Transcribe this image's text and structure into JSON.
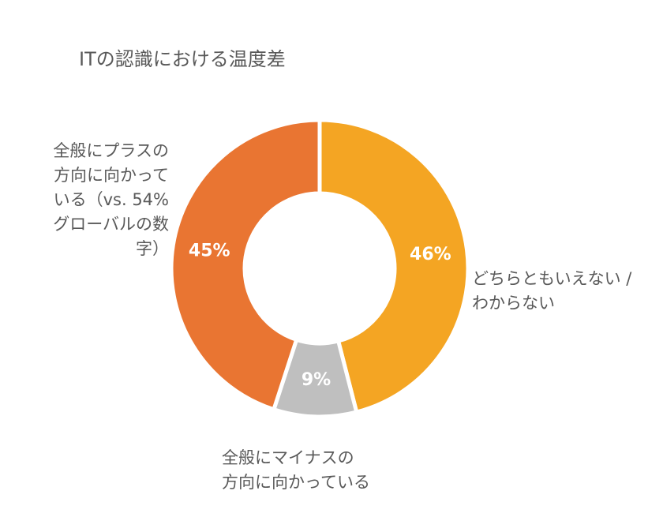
{
  "chart_data": {
    "type": "pie",
    "title": "ITの認識における温度差",
    "categories": [
      [
        "どちらともいえない /",
        "わからない"
      ],
      [
        "全般にマイナスの",
        "方向に向かっている"
      ],
      [
        "全般にプラスの",
        "方向に向かって",
        "いる（vs. 54%",
        "グローバルの数",
        "字）"
      ]
    ],
    "values": [
      46,
      9,
      45
    ],
    "value_labels": [
      "46%",
      "9%",
      "45%"
    ],
    "colors": [
      "#F4A523",
      "#BFBFBF",
      "#E97532"
    ]
  }
}
